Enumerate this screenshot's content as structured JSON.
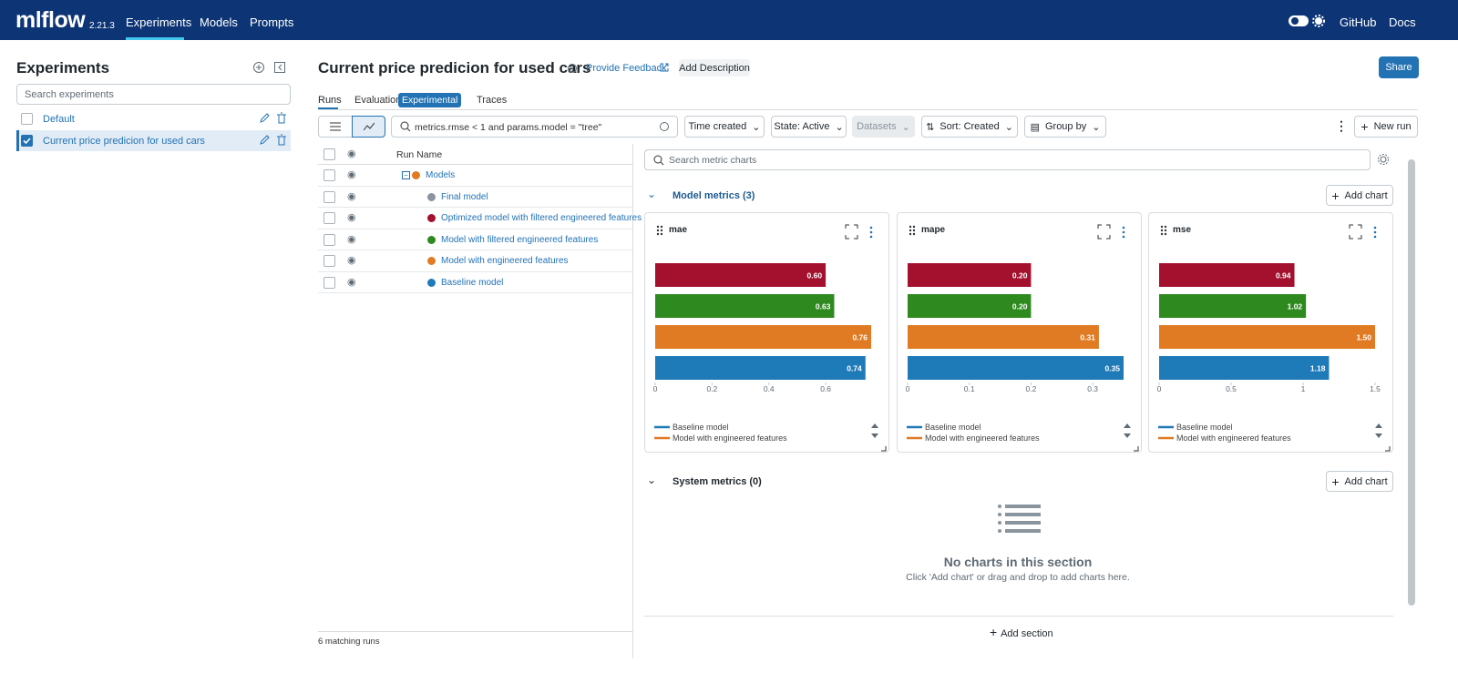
{
  "header": {
    "logo": "mlflow",
    "version": "2.21.3",
    "nav": [
      "Experiments",
      "Models",
      "Prompts"
    ],
    "links": [
      "GitHub",
      "Docs"
    ]
  },
  "sidebar": {
    "title": "Experiments",
    "search_placeholder": "Search experiments",
    "experiments": [
      "Default",
      "Current price predicion for used cars"
    ]
  },
  "experiment": {
    "title": "Current price predicion for used cars",
    "feedback": "Provide Feedback",
    "add_description": "Add Description",
    "share": "Share",
    "tabs": [
      "Runs",
      "Evaluation",
      "Traces"
    ],
    "badge": "Experimental"
  },
  "toolbar": {
    "search": "metrics.rmse < 1 and params.model = \"tree\"",
    "time": "Time created",
    "state": "State: Active",
    "datasets": "Datasets",
    "sort": "Sort: Created",
    "group": "Group by",
    "new_run": "New run"
  },
  "runs_table": {
    "header": "Run Name",
    "rows": [
      {
        "name": "Models",
        "color": "#e07b24"
      },
      {
        "name": "Final model",
        "color": "#8a94a0"
      },
      {
        "name": "Optimized model with filtered engineered features",
        "color": "#a3112e"
      },
      {
        "name": "Model with filtered engineered features",
        "color": "#2e8a1f"
      },
      {
        "name": "Model with engineered features",
        "color": "#e07b24"
      },
      {
        "name": "Baseline model",
        "color": "#1f7ab8"
      }
    ],
    "footer": "6 matching runs"
  },
  "charts_panel": {
    "search": "Search metric charts",
    "sections": [
      {
        "title": "Model metrics (3)",
        "add": "Add chart"
      },
      {
        "title": "System metrics (0)",
        "add": "Add chart"
      }
    ],
    "empty_title": "No charts in this section",
    "empty_text": "Click 'Add chart' or drag and drop to add charts here.",
    "add_section": "Add section"
  },
  "chart_data": [
    {
      "type": "bar",
      "orientation": "horizontal",
      "title": "mae",
      "values": [
        0.6,
        0.63,
        0.76,
        0.74
      ],
      "value_labels": [
        "0.60",
        "0.63",
        "0.76",
        "0.74"
      ],
      "colors": [
        "#a3112e",
        "#2e8a1f",
        "#e07b24",
        "#1f7ab8"
      ],
      "xlim": [
        0,
        0.76
      ],
      "xticks": [
        0,
        0.2,
        0.4,
        0.6
      ],
      "legend": [
        {
          "name": "Baseline model",
          "color": "#1f7ab8"
        },
        {
          "name": "Model with engineered features",
          "color": "#e07b24"
        }
      ]
    },
    {
      "type": "bar",
      "orientation": "horizontal",
      "title": "mape",
      "values": [
        0.2,
        0.2,
        0.31,
        0.35
      ],
      "value_labels": [
        "0.20",
        "0.20",
        "0.31",
        "0.35"
      ],
      "colors": [
        "#a3112e",
        "#2e8a1f",
        "#e07b24",
        "#1f7ab8"
      ],
      "xlim": [
        0,
        0.35
      ],
      "xticks": [
        0,
        0.1,
        0.2,
        0.3
      ],
      "legend": [
        {
          "name": "Baseline model",
          "color": "#1f7ab8"
        },
        {
          "name": "Model with engineered features",
          "color": "#e07b24"
        }
      ]
    },
    {
      "type": "bar",
      "orientation": "horizontal",
      "title": "mse",
      "values": [
        0.94,
        1.02,
        1.5,
        1.18
      ],
      "value_labels": [
        "0.94",
        "1.02",
        "1.50",
        "1.18"
      ],
      "colors": [
        "#a3112e",
        "#2e8a1f",
        "#e07b24",
        "#1f7ab8"
      ],
      "xlim": [
        0,
        1.5
      ],
      "xticks": [
        0,
        0.5,
        1,
        1.5
      ],
      "legend": [
        {
          "name": "Baseline model",
          "color": "#1f7ab8"
        },
        {
          "name": "Model with engineered features",
          "color": "#e07b24"
        }
      ]
    }
  ]
}
